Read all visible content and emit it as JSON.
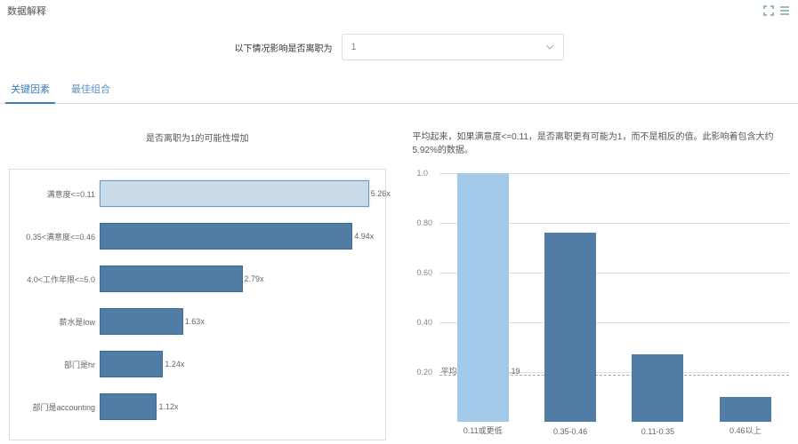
{
  "header": {
    "title": "数据解释",
    "icons": [
      "expand",
      "menu"
    ]
  },
  "filter": {
    "label": "以下情况影响是否离职为",
    "selected": "1"
  },
  "tabs": [
    {
      "label": "关键因素",
      "active": true
    },
    {
      "label": "最佳组合",
      "active": false
    }
  ],
  "left_chart": {
    "title": "是否离职为1的可能性增加",
    "max": 5.5,
    "bars": [
      {
        "label": "满意度<=0.11",
        "value": 5.26,
        "text": "5.26x",
        "highlight": true
      },
      {
        "label": "0.35<满意度<=0.46",
        "value": 4.94,
        "text": "4.94x"
      },
      {
        "label": "4.0<工作年限<=5.0",
        "value": 2.79,
        "text": "2.79x"
      },
      {
        "label": "薪水是low",
        "value": 1.63,
        "text": "1.63x"
      },
      {
        "label": "部门是hr",
        "value": 1.24,
        "text": "1.24x"
      },
      {
        "label": "部门是accounting",
        "value": 1.12,
        "text": "1.12x"
      }
    ],
    "colors": {
      "bar": "#517ca6",
      "highlight_fill": "#c9dae9",
      "highlight_border": "#6a9bc4"
    }
  },
  "right_chart": {
    "description": "平均起来，如果满意度<=0.11，是否离职更有可能为1，而不是相反的值。此影响着包含大约5.92%的数据。",
    "ymax": 1.0,
    "yticks": [
      0.2,
      0.4,
      0.6,
      0.8,
      1.0
    ],
    "reference": {
      "value": 0.19,
      "label": "平均(不包括所选):0.19"
    },
    "bars": [
      {
        "label": "0.11或更低",
        "value": 1.0,
        "light": true
      },
      {
        "label": "0.35-0.46",
        "value": 0.76
      },
      {
        "label": "0.11-0.35",
        "value": 0.27
      },
      {
        "label": "0.46以上",
        "value": 0.1
      }
    ],
    "colors": {
      "bar": "#517ca6",
      "light_bar": "#a3c9e8",
      "grid": "#dddddd"
    }
  }
}
